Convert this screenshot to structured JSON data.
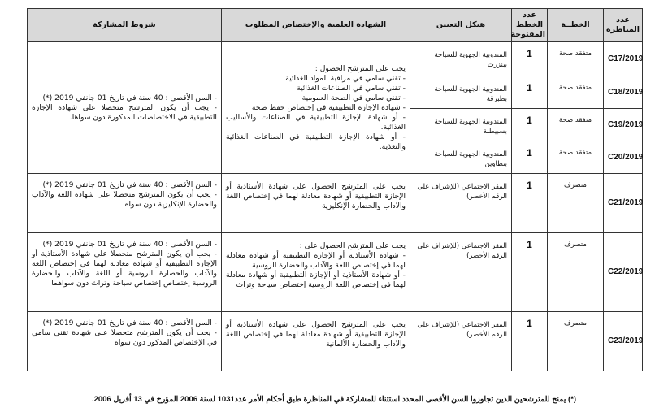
{
  "headers": {
    "code": "عدد المناظرة",
    "plan": "الخطــة",
    "count": "عدد الخطط المفتوحة",
    "structure": "هيكل التعيين",
    "certificate": "الشهادة العلمية والإختصاص المطلوب",
    "conditions": "شروط المشاركة"
  },
  "group1": {
    "rows": [
      {
        "code": "C17/2019",
        "plan": "متفقد صحة",
        "count": "1",
        "structure": "المندوبية الجهوية للسياحة ببنزرت"
      },
      {
        "code": "C18/2019",
        "plan": "متفقد صحة",
        "count": "1",
        "structure": "المندوبية الجهوية للسياحة بطبرقة"
      },
      {
        "code": "C19/2019",
        "plan": "متفقد صحة",
        "count": "1",
        "structure": "المندوبية الجهوية للسياحة بسبيطلة"
      },
      {
        "code": "C20/2019",
        "plan": "متفقد صحة",
        "count": "1",
        "structure": "المندوبية الجهوية للسياحة بتطاوين"
      }
    ],
    "certificate": [
      "يجب على المترشح الحصول :",
      "- تقني سامي في مراقبة المواد الغذائية",
      "- تقني سامي في الصناعات الغذائية",
      "- تقني سامي في الصحة العمومية",
      "- شهادة الإجازة التطبيقية في إختصاص حفظ صحة",
      "- أو شهادة الإجازة التطبيقية في الصناعات والأساليب الغذائية.",
      "- أو شهادة الإجازة التطبيقية في الصناعات الغذائية والتغذية."
    ],
    "conditions": [
      "- السن الأقصى : 40 سنة في تاريخ 01 جانفي 2019 (*)",
      "- يجب أن يكون المترشح متحصلا على شهادة الإجازة التطبيقية في الاختصاصات المذكورة دون سواها."
    ]
  },
  "rows": [
    {
      "code": "C21/2019",
      "plan": "متصرف",
      "count": "1",
      "structure": "المقر الاجتماعي (للإشراف على الرقم الأخضر)",
      "certificate": [
        "يجب على المترشح الحصول على شهادة الأستاذية أو الإجازة التطبيقية أو شهادة معادلة لهما في إختصاص اللغة والآداب والحضارة الإنكليزية"
      ],
      "conditions": [
        "- السن الأقصى : 40 سنة في تاريخ 01 جانفي 2019 (*)",
        "- يجب أن يكون المترشح متحصلا على شهادة اللغة والآداب والحضارة الإنكليزية دون سواه"
      ]
    },
    {
      "code": "C22/2019",
      "plan": "متصرف",
      "count": "1",
      "structure": "المقر الاجتماعي (للإشراف على الرقم الأخضر)",
      "certificate": [
        "يجب على المترشح الحصول على :",
        "- شهادة الأستاذية أو الإجازة التطبيقية أو شهادة معادلة لهما في إختصاص اللغة والآداب والحضارة الروسية",
        "- أو شهادة الأستاذية أو الإجازة التطبيقية أو شهادة معادلة لهما في إختصاص اللغة الروسية إختصاص سياحة وتراث"
      ],
      "conditions": [
        "- السن الأقصى : 40 سنة في تاريخ 01 جانفي 2019 (*)",
        "- يجب أن يكون المترشح متحصلا على شهادة الأستاذية أو الإجازة التطبيقية أو شهادة معادلة لهما في إختصاص اللغة والآداب والحضارة الروسية أو اللغة والآداب والحضارة الروسية إختصاص إختصاص سياحة وتراث دون سواهما"
      ]
    },
    {
      "code": "C23/2019",
      "plan": "متصرف",
      "count": "1",
      "structure": "المقر الاجتماعي (للإشراف على الرقم الأخضر)",
      "certificate": [
        "يجب على المترشح الحصول على شهادة الأستاذية أو الإجازة التطبيقية أو شهادة معادلة لهما في إختصاص اللغة والآداب والحضارة الألمانية"
      ],
      "conditions": [
        "- السن الأقصى : 40 سنة في تاريخ 01 جانفي 2019 (*)",
        "- يجب أن يكون المترشح متحصلا على شهادة تقني سامي في الإختصاص المذكور دون سواه"
      ]
    }
  ],
  "footnote": "(*) يمنح للمترشحين الذين تجاوزوا السن الأقصى المحدد استثناء للمشاركة في المناظرة طبق أحكام الأمر عدد1031 لسنة 2006 المؤرخ في 13 أفريل 2006."
}
